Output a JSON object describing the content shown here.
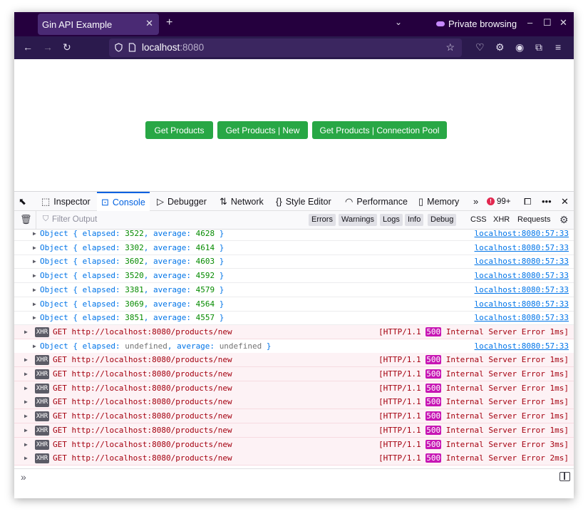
{
  "browser": {
    "tab_title": "Gin API Example",
    "tab_close": "✕",
    "new_tab": "+",
    "private_label": "Private browsing",
    "url_host": "localhost",
    "url_port": ":8080"
  },
  "page": {
    "buttons": [
      "Get Products",
      "Get Products | New",
      "Get Products | Connection Pool"
    ],
    "button_color": "#28a745"
  },
  "devtools": {
    "tabs": [
      "Inspector",
      "Console",
      "Debugger",
      "Network",
      "Style Editor",
      "Performance",
      "Memory"
    ],
    "active_tab": "Console",
    "error_count": "99+",
    "filter_placeholder": "Filter Output",
    "filter_buttons": [
      "Errors",
      "Warnings",
      "Logs",
      "Info",
      "Debug"
    ],
    "filter_plain": [
      "CSS",
      "XHR",
      "Requests"
    ],
    "input_prompt": "»"
  },
  "console": {
    "object_rows": [
      {
        "elapsed": "3522",
        "average": "4628",
        "source": "localhost:8080:57:33"
      },
      {
        "elapsed": "3302",
        "average": "4614",
        "source": "localhost:8080:57:33"
      },
      {
        "elapsed": "3602",
        "average": "4603",
        "source": "localhost:8080:57:33"
      },
      {
        "elapsed": "3520",
        "average": "4592",
        "source": "localhost:8080:57:33"
      },
      {
        "elapsed": "3381",
        "average": "4579",
        "source": "localhost:8080:57:33"
      },
      {
        "elapsed": "3069",
        "average": "4564",
        "source": "localhost:8080:57:33"
      },
      {
        "elapsed": "3851",
        "average": "4557",
        "source": "localhost:8080:57:33"
      }
    ],
    "xhr_first": {
      "method": "GET",
      "url": "http://localhost:8080/products/new",
      "status_prefix": "[HTTP/1.1",
      "code": "500",
      "status_suffix": "Internal Server Error 1ms]"
    },
    "undefined_row": {
      "text_prefix": "Object { elapsed: ",
      "val": "undefined",
      "mid": ", average: ",
      "val2": "undefined",
      "suffix": " }",
      "source": "localhost:8080:57:33"
    },
    "xhr_rows": [
      {
        "time": "1ms"
      },
      {
        "time": "1ms"
      },
      {
        "time": "1ms"
      },
      {
        "time": "1ms"
      },
      {
        "time": "1ms"
      },
      {
        "time": "1ms"
      },
      {
        "time": "3ms"
      },
      {
        "time": "2ms"
      }
    ],
    "xhr_tag": "XHR",
    "xhr_method": "GET",
    "xhr_url": "http://localhost:8080/products/new",
    "status_prefix": "[HTTP/1.1",
    "status_code": "500",
    "status_label": "Internal Server Error"
  }
}
